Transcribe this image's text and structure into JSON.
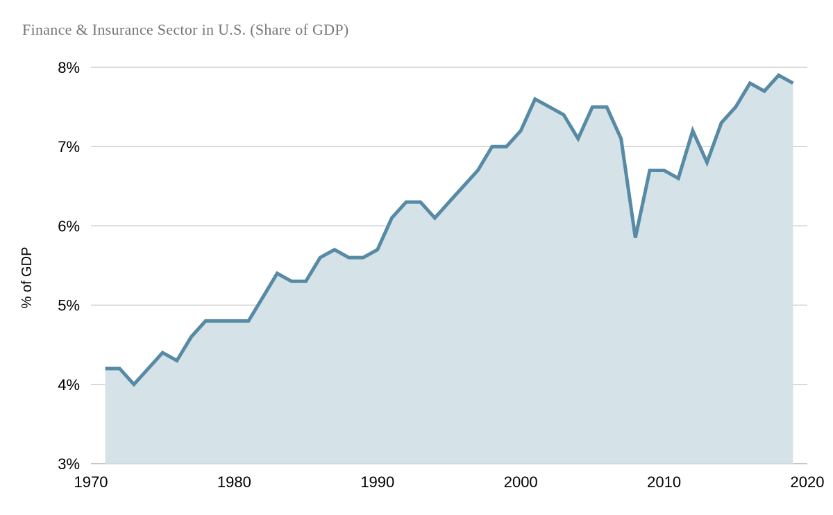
{
  "chart_data": {
    "type": "area",
    "title": "Finance & Insurance Sector in U.S. (Share of GDP)",
    "ylabel": "% of GDP",
    "xlabel": "",
    "legend": "none",
    "grid": "horizontal",
    "xlim": [
      1970,
      2020
    ],
    "ylim": [
      3,
      8
    ],
    "x": [
      1971,
      1972,
      1973,
      1974,
      1975,
      1976,
      1977,
      1978,
      1979,
      1980,
      1981,
      1982,
      1983,
      1984,
      1985,
      1986,
      1987,
      1988,
      1989,
      1990,
      1991,
      1992,
      1993,
      1994,
      1995,
      1996,
      1997,
      1998,
      1999,
      2000,
      2001,
      2002,
      2003,
      2004,
      2005,
      2006,
      2007,
      2008,
      2009,
      2010,
      2011,
      2012,
      2013,
      2014,
      2015,
      2016,
      2017,
      2018,
      2019
    ],
    "values": [
      4.2,
      4.2,
      4.0,
      4.2,
      4.4,
      4.3,
      4.6,
      4.8,
      4.8,
      4.8,
      4.8,
      5.1,
      5.4,
      5.3,
      5.3,
      5.6,
      5.7,
      5.6,
      5.6,
      5.7,
      6.1,
      6.3,
      6.3,
      6.1,
      6.3,
      6.5,
      6.7,
      7.0,
      7.0,
      7.2,
      7.6,
      7.5,
      7.4,
      7.1,
      7.5,
      7.5,
      7.1,
      5.85,
      6.7,
      6.7,
      6.6,
      7.2,
      6.8,
      7.3,
      7.5,
      7.8,
      7.7,
      7.9,
      7.8
    ],
    "y_ticks": [
      {
        "value": 8,
        "label": "8%"
      },
      {
        "value": 7,
        "label": "7%"
      },
      {
        "value": 6,
        "label": "6%"
      },
      {
        "value": 5,
        "label": "5%"
      },
      {
        "value": 4,
        "label": "4%"
      },
      {
        "value": 3,
        "label": "3%"
      }
    ],
    "x_ticks": [
      {
        "value": 1970,
        "label": "1970"
      },
      {
        "value": 1980,
        "label": "1980"
      },
      {
        "value": 1990,
        "label": "1990"
      },
      {
        "value": 2000,
        "label": "2000"
      },
      {
        "value": 2010,
        "label": "2010"
      },
      {
        "value": 2020,
        "label": "2020"
      }
    ],
    "colors": {
      "line": "#578aa4",
      "fill": "#d5e2e8",
      "grid": "#cdcdcd",
      "baseline": "#c6c6c6",
      "title": "#757575",
      "tick_text": "#000000"
    }
  }
}
